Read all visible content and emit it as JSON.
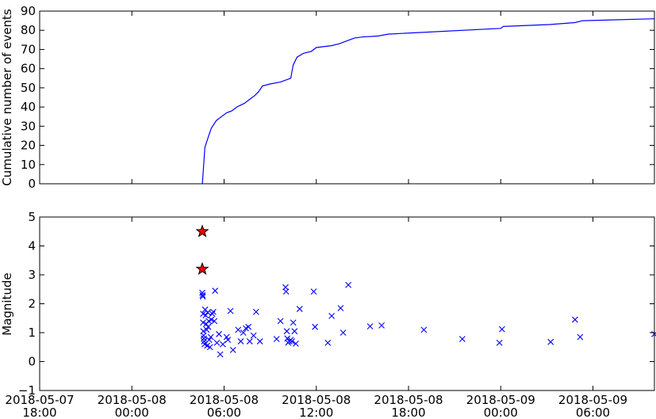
{
  "chart_data": [
    {
      "type": "line",
      "ylabel": "Cumulative number of events",
      "xlim": [
        "2018-05-07 18:00",
        "2018-05-09 10:00"
      ],
      "ylim": [
        0,
        90
      ],
      "yticks": [
        "0",
        "10",
        "20",
        "30",
        "40",
        "50",
        "60",
        "70",
        "80",
        "90"
      ],
      "grid": false,
      "series": [
        {
          "color": "#0000ff",
          "points": [
            [
              "2018-05-08 04:35",
              0
            ],
            [
              "2018-05-08 04:45",
              19
            ],
            [
              "2018-05-08 05:00",
              25
            ],
            [
              "2018-05-08 05:10",
              29
            ],
            [
              "2018-05-08 05:30",
              33
            ],
            [
              "2018-05-08 05:50",
              35
            ],
            [
              "2018-05-08 06:10",
              37
            ],
            [
              "2018-05-08 06:30",
              38
            ],
            [
              "2018-05-08 06:50",
              40
            ],
            [
              "2018-05-08 07:20",
              42
            ],
            [
              "2018-05-08 07:40",
              44
            ],
            [
              "2018-05-08 08:00",
              46
            ],
            [
              "2018-05-08 08:15",
              48
            ],
            [
              "2018-05-08 08:30",
              51
            ],
            [
              "2018-05-08 09:00",
              52
            ],
            [
              "2018-05-08 09:40",
              53
            ],
            [
              "2018-05-08 10:00",
              54
            ],
            [
              "2018-05-08 10:20",
              55
            ],
            [
              "2018-05-08 10:30",
              62
            ],
            [
              "2018-05-08 10:45",
              66
            ],
            [
              "2018-05-08 11:10",
              68
            ],
            [
              "2018-05-08 11:40",
              69
            ],
            [
              "2018-05-08 12:00",
              71
            ],
            [
              "2018-05-08 13:00",
              72
            ],
            [
              "2018-05-08 13:30",
              73
            ],
            [
              "2018-05-08 14:10",
              75
            ],
            [
              "2018-05-08 14:30",
              76
            ],
            [
              "2018-05-08 15:00",
              76.5
            ],
            [
              "2018-05-08 16:00",
              77
            ],
            [
              "2018-05-08 16:40",
              78
            ],
            [
              "2018-05-09 00:00",
              81
            ],
            [
              "2018-05-09 00:10",
              82
            ],
            [
              "2018-05-09 03:10",
              83
            ],
            [
              "2018-05-09 04:50",
              84
            ],
            [
              "2018-05-09 05:20",
              85
            ],
            [
              "2018-05-09 10:00",
              86
            ]
          ]
        }
      ]
    },
    {
      "type": "scatter",
      "ylabel": "Magnitude",
      "xlim": [
        "2018-05-07 18:00",
        "2018-05-09 10:00"
      ],
      "ylim": [
        -1,
        5
      ],
      "yticks": [
        "−1",
        "0",
        "1",
        "2",
        "3",
        "4",
        "5"
      ],
      "xticks": [
        [
          "2018-05-07",
          "18:00"
        ],
        [
          "2018-05-08",
          "00:00"
        ],
        [
          "2018-05-08",
          "06:00"
        ],
        [
          "2018-05-08",
          "12:00"
        ],
        [
          "2018-05-08",
          "18:00"
        ],
        [
          "2018-05-09",
          "00:00"
        ],
        [
          "2018-05-09",
          "06:00"
        ]
      ],
      "grid": false,
      "series": [
        {
          "marker": "x",
          "color": "#0000ff",
          "points": [
            [
              "2018-05-08 04:35",
              2.38
            ],
            [
              "2018-05-08 04:36",
              2.3
            ],
            [
              "2018-05-08 04:37",
              2.25
            ],
            [
              "2018-05-08 04:38",
              1.65
            ],
            [
              "2018-05-08 04:38",
              1.35
            ],
            [
              "2018-05-08 04:39",
              1.05
            ],
            [
              "2018-05-08 04:40",
              0.9
            ],
            [
              "2018-05-08 04:41",
              0.8
            ],
            [
              "2018-05-08 04:42",
              0.7
            ],
            [
              "2018-05-08 04:44",
              0.6
            ],
            [
              "2018-05-08 04:46",
              1.8
            ],
            [
              "2018-05-08 04:48",
              1.6
            ],
            [
              "2018-05-08 04:50",
              1.3
            ],
            [
              "2018-05-08 04:52",
              1.1
            ],
            [
              "2018-05-08 04:54",
              0.55
            ],
            [
              "2018-05-08 04:56",
              1.7
            ],
            [
              "2018-05-08 04:58",
              1.2
            ],
            [
              "2018-05-08 05:00",
              1.4
            ],
            [
              "2018-05-08 05:02",
              0.75
            ],
            [
              "2018-05-08 05:05",
              0.5
            ],
            [
              "2018-05-08 05:08",
              0.85
            ],
            [
              "2018-05-08 05:10",
              1.45
            ],
            [
              "2018-05-08 05:14",
              1.65
            ],
            [
              "2018-05-08 05:18",
              1.72
            ],
            [
              "2018-05-08 05:22",
              1.4
            ],
            [
              "2018-05-08 05:25",
              2.45
            ],
            [
              "2018-05-08 05:32",
              0.65
            ],
            [
              "2018-05-08 05:40",
              0.95
            ],
            [
              "2018-05-08 05:45",
              0.25
            ],
            [
              "2018-05-08 05:55",
              0.6
            ],
            [
              "2018-05-08 06:10",
              0.85
            ],
            [
              "2018-05-08 06:15",
              0.75
            ],
            [
              "2018-05-08 06:25",
              1.75
            ],
            [
              "2018-05-08 06:35",
              0.4
            ],
            [
              "2018-05-08 06:55",
              1.1
            ],
            [
              "2018-05-08 07:05",
              0.7
            ],
            [
              "2018-05-08 07:15",
              1.0
            ],
            [
              "2018-05-08 07:25",
              1.15
            ],
            [
              "2018-05-08 07:35",
              1.2
            ],
            [
              "2018-05-08 07:40",
              0.7
            ],
            [
              "2018-05-08 07:55",
              0.9
            ],
            [
              "2018-05-08 08:05",
              1.72
            ],
            [
              "2018-05-08 08:20",
              0.7
            ],
            [
              "2018-05-08 09:25",
              0.78
            ],
            [
              "2018-05-08 09:40",
              1.4
            ],
            [
              "2018-05-08 10:00",
              2.57
            ],
            [
              "2018-05-08 10:02",
              2.42
            ],
            [
              "2018-05-08 10:05",
              1.05
            ],
            [
              "2018-05-08 10:07",
              0.8
            ],
            [
              "2018-05-08 10:10",
              0.65
            ],
            [
              "2018-05-08 10:15",
              0.7
            ],
            [
              "2018-05-08 10:20",
              0.75
            ],
            [
              "2018-05-08 10:25",
              0.7
            ],
            [
              "2018-05-08 10:30",
              1.35
            ],
            [
              "2018-05-08 10:35",
              1.05
            ],
            [
              "2018-05-08 10:40",
              0.62
            ],
            [
              "2018-05-08 10:55",
              1.82
            ],
            [
              "2018-05-08 11:50",
              2.42
            ],
            [
              "2018-05-08 11:55",
              1.2
            ],
            [
              "2018-05-08 12:45",
              0.65
            ],
            [
              "2018-05-08 13:00",
              1.58
            ],
            [
              "2018-05-08 13:35",
              1.85
            ],
            [
              "2018-05-08 13:45",
              1.0
            ],
            [
              "2018-05-08 14:05",
              2.65
            ],
            [
              "2018-05-08 15:30",
              1.22
            ],
            [
              "2018-05-08 16:15",
              1.25
            ],
            [
              "2018-05-08 19:00",
              1.1
            ],
            [
              "2018-05-08 21:30",
              0.78
            ],
            [
              "2018-05-08 23:55",
              0.65
            ],
            [
              "2018-05-09 00:05",
              1.12
            ],
            [
              "2018-05-09 03:15",
              0.68
            ],
            [
              "2018-05-09 04:50",
              1.45
            ],
            [
              "2018-05-09 05:10",
              0.85
            ],
            [
              "2018-05-09 10:00",
              0.95
            ]
          ]
        },
        {
          "marker": "star",
          "color": "#ff0000",
          "points": [
            [
              "2018-05-08 04:35",
              4.5
            ],
            [
              "2018-05-08 04:35",
              3.2
            ]
          ]
        }
      ]
    }
  ]
}
